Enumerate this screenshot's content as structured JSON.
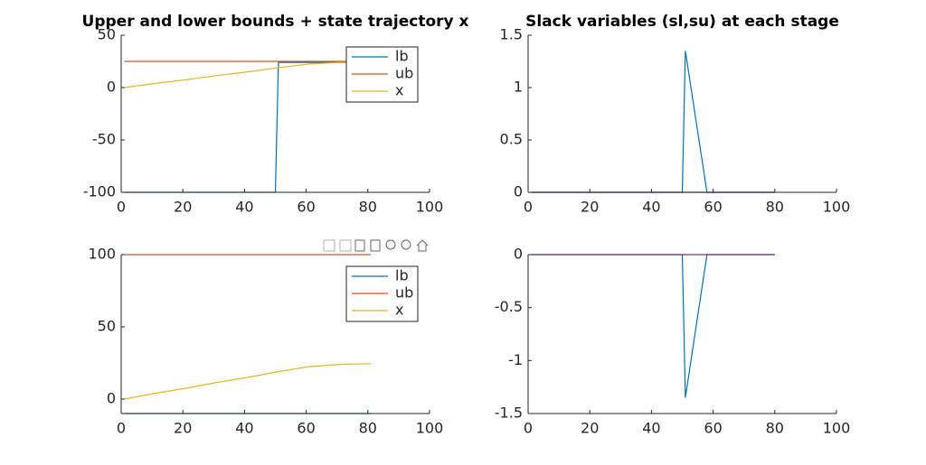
{
  "chart_data": [
    {
      "type": "line",
      "title": "Upper and lower bounds + state trajectory x",
      "xlim": [
        0,
        100
      ],
      "xticks": [
        0,
        20,
        40,
        60,
        80,
        100
      ],
      "ylim": [
        -100,
        50
      ],
      "yticks": [
        -100,
        -50,
        0,
        50
      ],
      "legend": "northeast",
      "series": [
        {
          "name": "lb",
          "color": "#0072bd",
          "x": [
            1,
            50,
            51,
            81
          ],
          "values": [
            -100,
            -100,
            24,
            24
          ]
        },
        {
          "name": "ub",
          "color": "#d95319",
          "x": [
            1,
            81
          ],
          "values": [
            25,
            25
          ]
        },
        {
          "name": "x",
          "color": "#edb120",
          "x": [
            1,
            11,
            21,
            31,
            41,
            51,
            61,
            71,
            81
          ],
          "values": [
            0,
            4,
            7.5,
            11.5,
            15,
            19,
            22.5,
            24,
            24.5
          ]
        }
      ]
    },
    {
      "type": "line",
      "title": "Slack variables (sl,su) at each stage",
      "xlim": [
        0,
        100
      ],
      "xticks": [
        0,
        20,
        40,
        60,
        80,
        100
      ],
      "ylim": [
        0,
        1.5
      ],
      "yticks": [
        0,
        0.5,
        1,
        1.5
      ],
      "series": [
        {
          "color": "#0072bd",
          "x": [
            1,
            50,
            51,
            58,
            80
          ],
          "values": [
            0,
            0,
            1.35,
            0,
            0
          ]
        },
        {
          "color": "#7e2f8e",
          "x": [
            1,
            80
          ],
          "values": [
            0,
            0
          ]
        }
      ]
    },
    {
      "type": "line",
      "xlim": [
        0,
        100
      ],
      "xticks": [
        0,
        20,
        40,
        60,
        80,
        100
      ],
      "ylim": [
        -10,
        100
      ],
      "yticks": [
        0,
        50,
        100
      ],
      "legend": "northeast",
      "series": [
        {
          "name": "lb",
          "color": "#0072bd",
          "x": [
            1,
            81
          ],
          "values": [
            -10,
            -10
          ]
        },
        {
          "name": "ub",
          "color": "#d95319",
          "x": [
            1,
            81
          ],
          "values": [
            100,
            100
          ]
        },
        {
          "name": "x",
          "color": "#edb120",
          "x": [
            1,
            11,
            21,
            31,
            41,
            51,
            61,
            71,
            81
          ],
          "values": [
            0,
            4,
            7.5,
            11.5,
            15,
            19,
            22.5,
            24,
            24.5
          ]
        }
      ]
    },
    {
      "type": "line",
      "xlim": [
        0,
        100
      ],
      "xticks": [
        0,
        20,
        40,
        60,
        80,
        100
      ],
      "ylim": [
        -1.5,
        0
      ],
      "yticks": [
        -1.5,
        -1,
        -0.5,
        0
      ],
      "series": [
        {
          "color": "#0072bd",
          "x": [
            1,
            50,
            51,
            58,
            80
          ],
          "values": [
            0,
            0,
            -1.35,
            0,
            0
          ]
        },
        {
          "color": "#7e2f8e",
          "x": [
            1,
            80
          ],
          "values": [
            0,
            0
          ]
        }
      ]
    }
  ]
}
